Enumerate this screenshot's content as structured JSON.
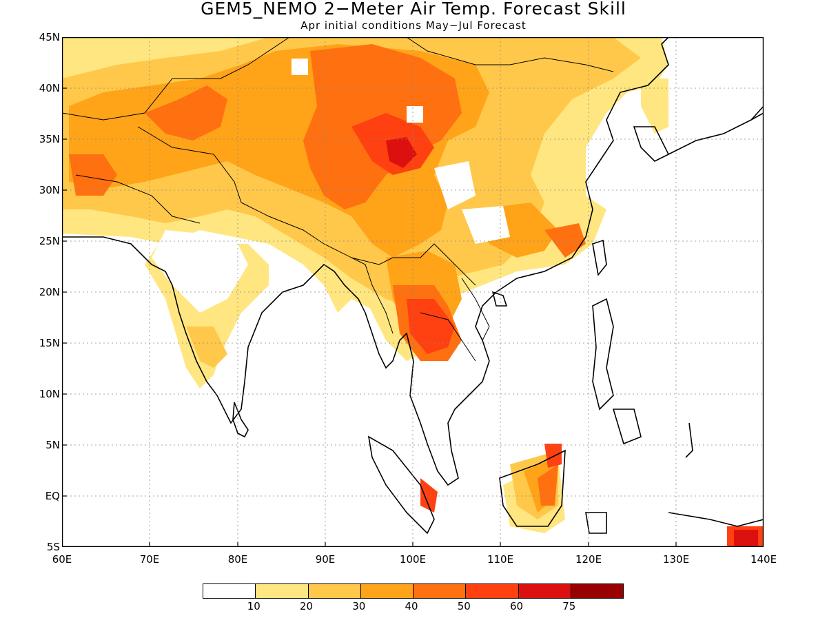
{
  "title": "GEM5_NEMO 2−Meter Air Temp. Forecast Skill",
  "subtitle": "Apr initial conditions  May−Jul Forecast",
  "map": {
    "lon_range": [
      60,
      140
    ],
    "lat_range": [
      -5,
      45
    ],
    "lat_labels": [
      "45N",
      "40N",
      "35N",
      "30N",
      "25N",
      "20N",
      "15N",
      "10N",
      "5N",
      "EQ",
      "5S"
    ],
    "lon_labels": [
      "60E",
      "70E",
      "80E",
      "90E",
      "100E",
      "110E",
      "120E",
      "130E",
      "140E"
    ],
    "gridlines": "dotted"
  },
  "colorbar": {
    "colors": [
      "#ffffff",
      "#ffe680",
      "#ffc84a",
      "#ffa319",
      "#ff7010",
      "#ff4010",
      "#dd1010",
      "#990000"
    ],
    "labels": [
      "10",
      "20",
      "30",
      "40",
      "50",
      "60",
      "75"
    ]
  }
}
